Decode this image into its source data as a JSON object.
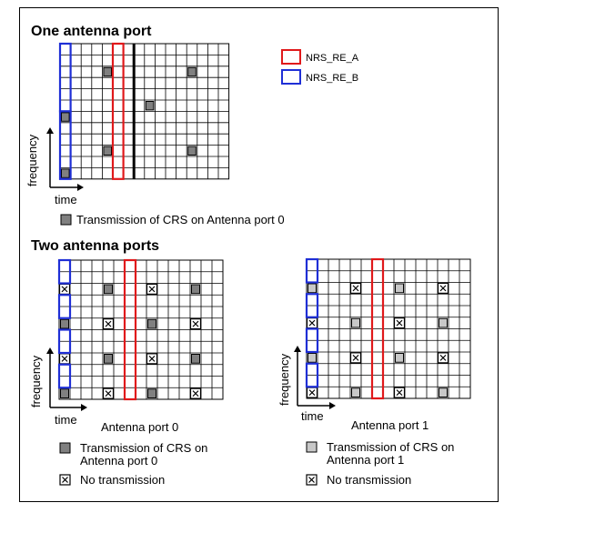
{
  "section_one": {
    "title": "One antenna port",
    "legend_nrs": [
      {
        "label": "NRS_RE_A",
        "color": "#e0191b"
      },
      {
        "label": "NRS_RE_B",
        "color": "#1f2fd6"
      }
    ],
    "axis": {
      "y": "frequency",
      "x": "time"
    },
    "legend_crs": "Transmission of CRS on Antenna port 0"
  },
  "section_two": {
    "title": "Two antenna ports",
    "left": {
      "axis": {
        "y": "frequency",
        "x": "time"
      },
      "caption": "Antenna port 0",
      "legend_crs_line1": "Transmission of CRS on",
      "legend_crs_line2": "Antenna port 0",
      "legend_x": "No transmission"
    },
    "right": {
      "axis": {
        "y": "frequency",
        "x": "time"
      },
      "caption": "Antenna port 1",
      "legend_crs_line1": "Transmission of CRS on",
      "legend_crs_line2": "Antenna port 1",
      "legend_x": "No transmission"
    }
  },
  "colors": {
    "crs_port0": "#808080",
    "crs_port1": "#c8c8c8",
    "nrs_a": "#e0191b",
    "nrs_b": "#1f2fd6",
    "grid": "#000000"
  },
  "icons": {
    "no_transmission": "x-box-icon",
    "axis": "axis-arrow-icon"
  }
}
